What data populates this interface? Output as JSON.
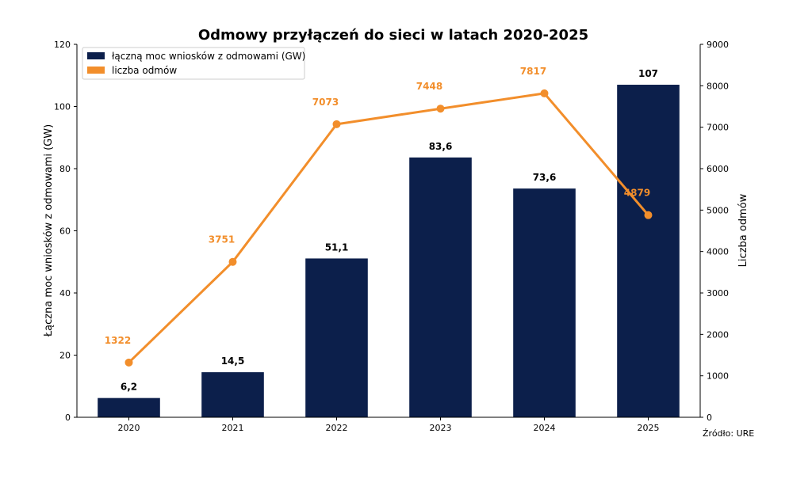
{
  "colors": {
    "bar": "#0c1f4b",
    "line": "#f28e2b",
    "axis": "#000000",
    "text": "#000000"
  },
  "chart_data": {
    "type": "bar",
    "title": "Odmowy przyłączeń do sieci w latach 2020-2025",
    "xlabel": "",
    "ylabel": "Łączna moc wniosków z odmowami (GW)",
    "ylabel_right": "Liczba odmów",
    "ylim": [
      0,
      120
    ],
    "ylim_right": [
      0,
      9000
    ],
    "yticks": [
      0,
      20,
      40,
      60,
      80,
      100,
      120
    ],
    "yticks_right": [
      0,
      1000,
      2000,
      3000,
      4000,
      5000,
      6000,
      7000,
      8000,
      9000
    ],
    "categories": [
      "2020",
      "2021",
      "2022",
      "2023",
      "2024",
      "2025"
    ],
    "grid": false,
    "legend_position": "top-left",
    "series": [
      {
        "name": "łączną moc wniosków z odmowami (GW)",
        "type": "bar",
        "axis": "left",
        "values": [
          6.2,
          14.5,
          51.1,
          83.6,
          73.6,
          107
        ],
        "labels": [
          "6,2",
          "14,5",
          "51,1",
          "83,6",
          "73,6",
          "107"
        ]
      },
      {
        "name": "liczba odmów",
        "type": "line",
        "axis": "right",
        "values": [
          1322,
          3751,
          7073,
          7448,
          7817,
          4879
        ],
        "labels": [
          "1322",
          "3751",
          "7073",
          "7448",
          "7817",
          "4879"
        ]
      }
    ],
    "source_note": "Źródło: URE"
  }
}
